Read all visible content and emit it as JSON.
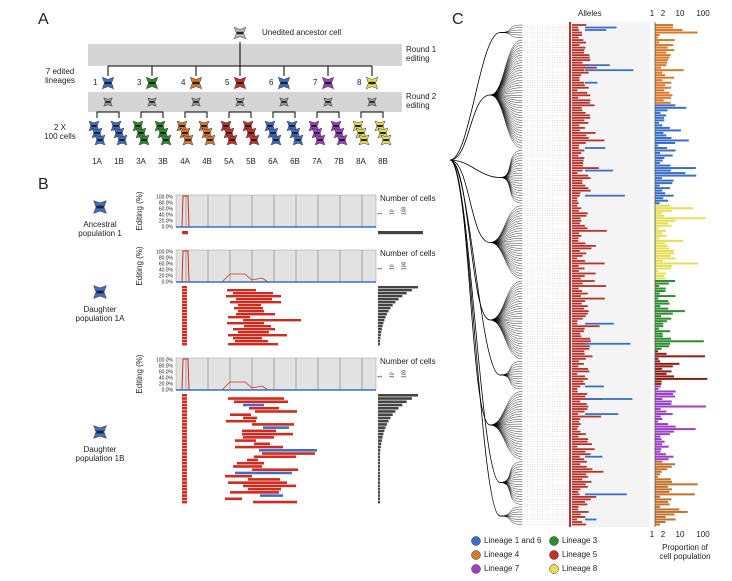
{
  "panel_a": {
    "label": "A",
    "ancestor": "Unedited ancestor cell",
    "round1": [
      "Round 1",
      "editing"
    ],
    "round2": [
      "Round 2",
      "editing"
    ],
    "lineages_label": [
      "7 edited",
      "lineages"
    ],
    "cells_label": [
      "2 X",
      "100 cells"
    ],
    "lineages": [
      "1",
      "3",
      "4",
      "5",
      "6",
      "7",
      "8"
    ],
    "populations": [
      "1A",
      "1B",
      "3A",
      "3B",
      "4A",
      "4B",
      "5A",
      "5B",
      "6A",
      "6B",
      "7A",
      "7B",
      "8A",
      "8B"
    ]
  },
  "panel_b": {
    "label": "B",
    "y_axis_label": "Editing (%)",
    "yticks": [
      "100.0%",
      "80.0%",
      "60.0%",
      "40.0%",
      "20.0%",
      "0.0%"
    ],
    "count_label": "Number of cells",
    "count_ticks": [
      "1",
      "10",
      "100"
    ],
    "populations": [
      [
        "Ancestral",
        "population 1"
      ],
      [
        "Daughter",
        "population 1A"
      ],
      [
        "Daughter",
        "population 1B"
      ]
    ]
  },
  "panel_c": {
    "label": "C",
    "alleles": "Alleles",
    "top_ticks": [
      "1",
      "2",
      "10",
      "100"
    ],
    "bottom_ticks": [
      "1",
      "2",
      "10",
      "100"
    ],
    "x_label": [
      "Proportion of",
      "cell population"
    ],
    "legend": [
      {
        "name": "Lineage 1 and 6",
        "color": "#3b6fc6"
      },
      {
        "name": "Lineage 3",
        "color": "#2e8b2e"
      },
      {
        "name": "Lineage 4",
        "color": "#d9792b"
      },
      {
        "name": "Lineage 5",
        "color": "#c8302a"
      },
      {
        "name": "Lineage 7",
        "color": "#9b3fc4"
      },
      {
        "name": "Lineage 8",
        "color": "#e6df55"
      }
    ]
  }
}
